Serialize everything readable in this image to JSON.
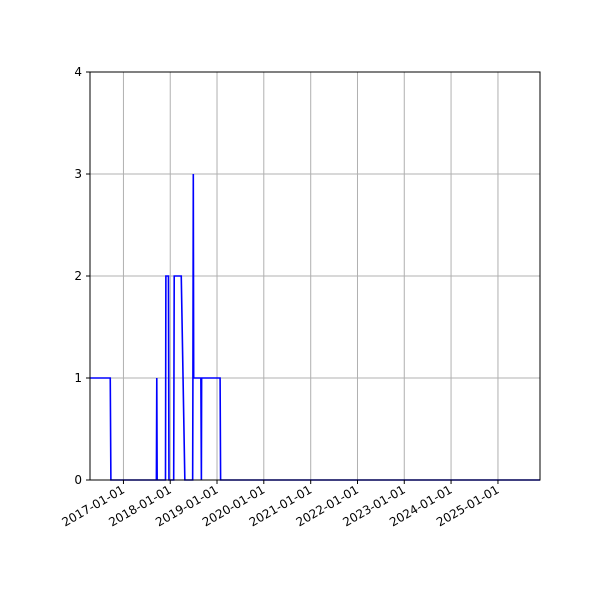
{
  "chart_data": {
    "type": "line",
    "title": "",
    "xlabel": "",
    "ylabel": "",
    "x_type": "date",
    "xlim": [
      "2016-04-15",
      "2025-11-25"
    ],
    "ylim": [
      0,
      4
    ],
    "grid": true,
    "legend": "none",
    "x_ticks": [
      "2017-01-01",
      "2018-01-01",
      "2019-01-01",
      "2020-01-01",
      "2021-01-01",
      "2022-01-01",
      "2023-01-01",
      "2024-01-01",
      "2025-01-01"
    ],
    "x_tick_labels": [
      "2017-01-01",
      "2018-01-01",
      "2019-01-01",
      "2020-01-01",
      "2021-01-01",
      "2022-01-01",
      "2023-01-01",
      "2024-01-01",
      "2025-01-01"
    ],
    "y_ticks": [
      0,
      1,
      2,
      3,
      4
    ],
    "y_tick_labels": [
      "0",
      "1",
      "2",
      "3",
      "4"
    ],
    "series": [
      {
        "color": "#0000ff",
        "points": [
          {
            "x": "2016-04-15",
            "y": 1
          },
          {
            "x": "2016-09-20",
            "y": 1
          },
          {
            "x": "2016-09-25",
            "y": 0
          },
          {
            "x": "2017-09-15",
            "y": 0
          },
          {
            "x": "2017-09-18",
            "y": 1
          },
          {
            "x": "2017-09-21",
            "y": 0
          },
          {
            "x": "2017-11-25",
            "y": 0
          },
          {
            "x": "2017-11-28",
            "y": 2
          },
          {
            "x": "2017-12-18",
            "y": 2
          },
          {
            "x": "2017-12-22",
            "y": 0
          },
          {
            "x": "2018-01-28",
            "y": 0
          },
          {
            "x": "2018-02-01",
            "y": 2
          },
          {
            "x": "2018-03-28",
            "y": 2
          },
          {
            "x": "2018-04-25",
            "y": 0
          },
          {
            "x": "2018-06-25",
            "y": 0
          },
          {
            "x": "2018-06-27",
            "y": 1
          },
          {
            "x": "2018-06-30",
            "y": 3
          },
          {
            "x": "2018-07-03",
            "y": 1
          },
          {
            "x": "2018-08-28",
            "y": 1
          },
          {
            "x": "2018-09-01",
            "y": 0
          },
          {
            "x": "2018-09-03",
            "y": 1
          },
          {
            "x": "2019-01-25",
            "y": 1
          },
          {
            "x": "2019-01-29",
            "y": 0
          },
          {
            "x": "2025-11-25",
            "y": 0
          }
        ]
      }
    ]
  }
}
